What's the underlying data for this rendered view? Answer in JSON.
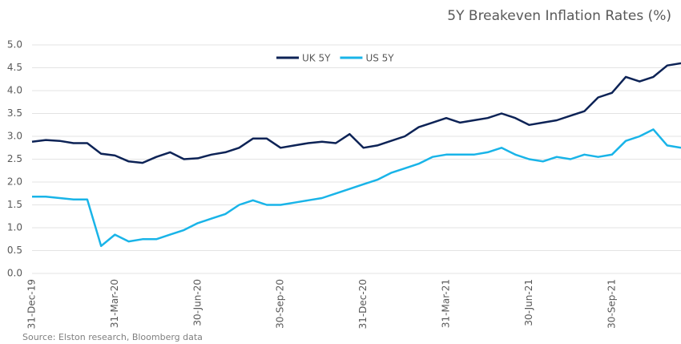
{
  "chart_data": {
    "type": "line",
    "title": "5Y Breakeven Inflation Rates (%)",
    "source": "Source: Elston research, Bloomberg data",
    "categories": [
      "31-Dec-19",
      null,
      null,
      null,
      null,
      null,
      "31-Mar-20",
      null,
      null,
      null,
      null,
      null,
      "30-Jun-20",
      null,
      null,
      null,
      null,
      null,
      "30-Sep-20",
      null,
      null,
      null,
      null,
      null,
      "31-Dec-20",
      null,
      null,
      null,
      null,
      null,
      "31-Mar-21",
      null,
      null,
      null,
      null,
      null,
      "30-Jun-21",
      null,
      null,
      null,
      null,
      null,
      "30-Sep-21",
      null,
      null,
      null,
      null,
      null
    ],
    "series": [
      {
        "name": "UK 5Y",
        "color": "#0d2356",
        "values": [
          2.88,
          2.92,
          2.9,
          2.85,
          2.85,
          2.62,
          2.58,
          2.45,
          2.42,
          2.55,
          2.65,
          2.5,
          2.52,
          2.6,
          2.65,
          2.75,
          2.95,
          2.95,
          2.75,
          2.8,
          2.85,
          2.88,
          2.85,
          3.05,
          2.75,
          2.8,
          2.9,
          3.0,
          3.2,
          3.3,
          3.4,
          3.3,
          3.35,
          3.4,
          3.5,
          3.4,
          3.25,
          3.3,
          3.35,
          3.45,
          3.55,
          3.85,
          3.95,
          4.3,
          4.2,
          4.3,
          4.55,
          4.6
        ]
      },
      {
        "name": "US 5Y",
        "color": "#19b4e8",
        "values": [
          1.68,
          1.68,
          1.65,
          1.62,
          1.62,
          0.6,
          0.85,
          0.7,
          0.75,
          0.75,
          0.85,
          0.95,
          1.1,
          1.2,
          1.3,
          1.5,
          1.6,
          1.5,
          1.5,
          1.55,
          1.6,
          1.65,
          1.75,
          1.85,
          1.95,
          2.05,
          2.2,
          2.3,
          2.4,
          2.55,
          2.6,
          2.6,
          2.6,
          2.65,
          2.75,
          2.6,
          2.5,
          2.45,
          2.55,
          2.5,
          2.6,
          2.55,
          2.6,
          2.9,
          3.0,
          3.15,
          2.8,
          2.75
        ]
      }
    ],
    "ylim": [
      0,
      5
    ],
    "yticks": [
      {
        "value": 0,
        "label": "0.0"
      },
      {
        "value": 0.5,
        "label": "0.5"
      },
      {
        "value": 1,
        "label": "1.0"
      },
      {
        "value": 1.5,
        "label": "1.5"
      },
      {
        "value": 2,
        "label": "2.0"
      },
      {
        "value": 2.5,
        "label": "2.5"
      },
      {
        "value": 3,
        "label": "3.0"
      },
      {
        "value": 3.5,
        "label": "3.5"
      },
      {
        "value": 4,
        "label": "4.0"
      },
      {
        "value": 4.5,
        "label": "4.5"
      },
      {
        "value": 5,
        "label": "5.0"
      }
    ],
    "grid": true,
    "legend": "top"
  }
}
